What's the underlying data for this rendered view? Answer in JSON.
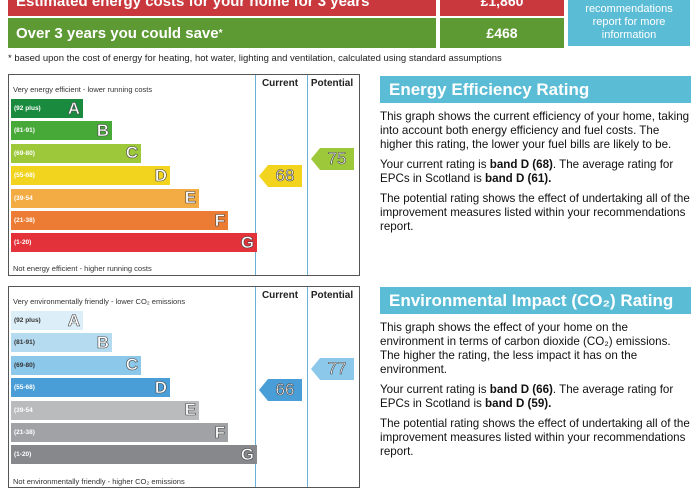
{
  "costs": {
    "row1_label": "Estimated energy costs for your home for 3 years",
    "row1_value": "£1,860",
    "row2_label": "Over 3 years you could save",
    "row2_marker": "*",
    "row2_value": "£468",
    "info_box": [
      "recommendations",
      "report for more",
      "information"
    ]
  },
  "footnote": "* based upon the cost of energy for heating, hot water, lighting and ventilation, calculated using standard assumptions",
  "energy_chart": {
    "top_note": "Very energy efficient - lower running costs",
    "bottom_note": "Not energy efficient - higher running costs",
    "col_current": "Current",
    "col_potential": "Potential",
    "current": "68",
    "potential": "75",
    "bands": [
      {
        "range": "(92 plus)",
        "letter": "A",
        "color": "#1a8a3e"
      },
      {
        "range": "(81-91)",
        "letter": "B",
        "color": "#47a937"
      },
      {
        "range": "(69-80)",
        "letter": "C",
        "color": "#9cc83a"
      },
      {
        "range": "(55-68)",
        "letter": "D",
        "color": "#f2d41e"
      },
      {
        "range": "(39-54",
        "letter": "E",
        "color": "#f3ac43"
      },
      {
        "range": "(21-38)",
        "letter": "F",
        "color": "#ec7b33"
      },
      {
        "range": "(1-20)",
        "letter": "G",
        "color": "#e3323a"
      }
    ]
  },
  "env_chart": {
    "top_note": "Very environmentally friendly - lower CO₂ emissions",
    "bottom_note": "Not environmentally friendly - higher CO₂ emissions",
    "col_current": "Current",
    "col_potential": "Potential",
    "current": "66",
    "potential": "77",
    "bands": [
      {
        "range": "(92 plus)",
        "letter": "A",
        "color": "#dceff8"
      },
      {
        "range": "(81-91)",
        "letter": "B",
        "color": "#b5dbf0"
      },
      {
        "range": "(69-80)",
        "letter": "C",
        "color": "#8cc8ea"
      },
      {
        "range": "(55-68)",
        "letter": "D",
        "color": "#4a9ed8"
      },
      {
        "range": "(39-54",
        "letter": "E",
        "color": "#b9bbbd"
      },
      {
        "range": "(21-38)",
        "letter": "F",
        "color": "#a0a2a5"
      },
      {
        "range": "(1-20)",
        "letter": "G",
        "color": "#86888b"
      }
    ]
  },
  "energy_panel": {
    "title": "Energy Efficiency Rating",
    "p1": "This graph shows the current efficiency of your home, taking into account both energy efficiency and fuel costs. The higher this rating, the lower your fuel bills are likely to be.",
    "p2_pre": "Your current rating is ",
    "p2_band": "band D (68)",
    "p2_mid": ". The average rating for EPCs in Scotland is ",
    "p2_avg": "band D (61).",
    "p3": "The potential rating shows the effect of undertaking all of the improvement measures listed within your recommendations report."
  },
  "env_panel": {
    "title": "Environmental Impact (CO₂) Rating",
    "p1": "This graph shows the effect of your home on the environment in terms of carbon dioxide (CO₂) emissions. The higher the rating, the less impact it has on the environment.",
    "p2_pre": "Your current rating is ",
    "p2_band": "band D (66)",
    "p2_mid": ". The average rating for EPCs in Scotland is ",
    "p2_avg": "band D (59).",
    "p3": "The potential rating shows the effect of undertaking all of the improvement measures listed within your recommendations report."
  }
}
